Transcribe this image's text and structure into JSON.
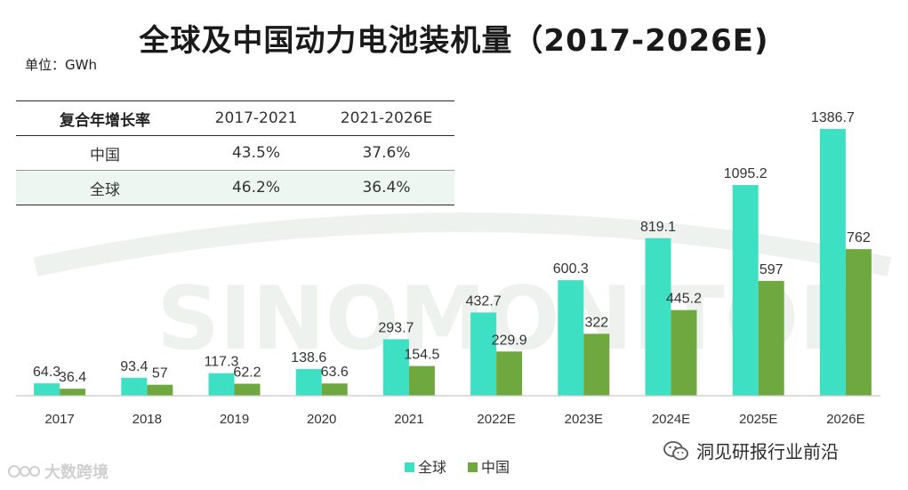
{
  "title": "全球及中国动力电池装机量（2017-2026E)",
  "unit_label": "单位：GWh",
  "watermark": "SINOMONITOR",
  "cagr_table": {
    "headers": [
      "复合年增长率",
      "2017-2021",
      "2021-2026E"
    ],
    "rows": [
      {
        "region": "中国",
        "v1": "43.5%",
        "v2": "37.6%"
      },
      {
        "region": "全球",
        "v1": "46.2%",
        "v2": "36.4%"
      }
    ]
  },
  "chart_data": {
    "type": "bar",
    "title": "全球及中国动力电池装机量（2017-2026E)",
    "xlabel": "",
    "ylabel": "GWh",
    "ylim": [
      0,
      1500
    ],
    "categories": [
      "2017",
      "2018",
      "2019",
      "2020",
      "2021",
      "2022E",
      "2023E",
      "2024E",
      "2025E",
      "2026E"
    ],
    "series": [
      {
        "name": "全球",
        "color": "#3ee0c4",
        "values": [
          64.3,
          93.4,
          117.3,
          138.6,
          293.7,
          432.7,
          600.3,
          819.1,
          1095.2,
          1386.7
        ],
        "labels": [
          "64.3",
          "93.4",
          "117.3",
          "138.6",
          "293.7",
          "432.7",
          "600.3",
          "819.1",
          "1095.2",
          "1386.7"
        ]
      },
      {
        "name": "中国",
        "color": "#6fa83f",
        "values": [
          36.4,
          57,
          62.2,
          63.6,
          154.5,
          229.9,
          322,
          445.2,
          597,
          762
        ],
        "labels": [
          "36.4",
          "57",
          "62.2",
          "63.6",
          "154.5",
          "229.9",
          "322",
          "445.2",
          "597",
          "762"
        ]
      }
    ],
    "legend": {
      "position": "bottom-center"
    },
    "grid": false
  },
  "brand_left": "大数跨境",
  "brand_right": "洞见研报行业前沿"
}
